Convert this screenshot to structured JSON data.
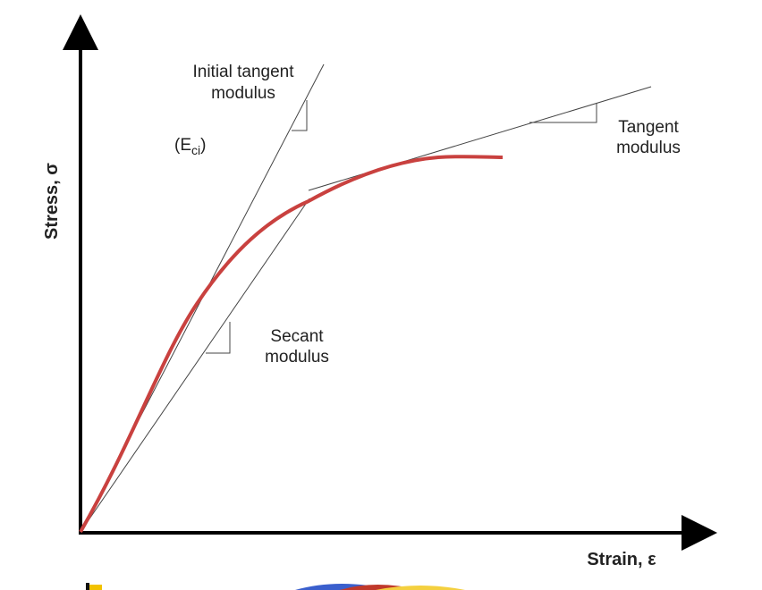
{
  "axes": {
    "y_label": "Stress, σ",
    "x_label": "Strain, ε"
  },
  "annotations": {
    "initial_tangent": {
      "line1": "Initial tangent",
      "line2": "modulus",
      "symbol_open": "(E",
      "symbol_sub": "ci",
      "symbol_close": ")"
    },
    "tangent": {
      "line1": "Tangent",
      "line2": "modulus"
    },
    "secant": {
      "line1": "Secant",
      "line2": "modulus"
    }
  }
}
